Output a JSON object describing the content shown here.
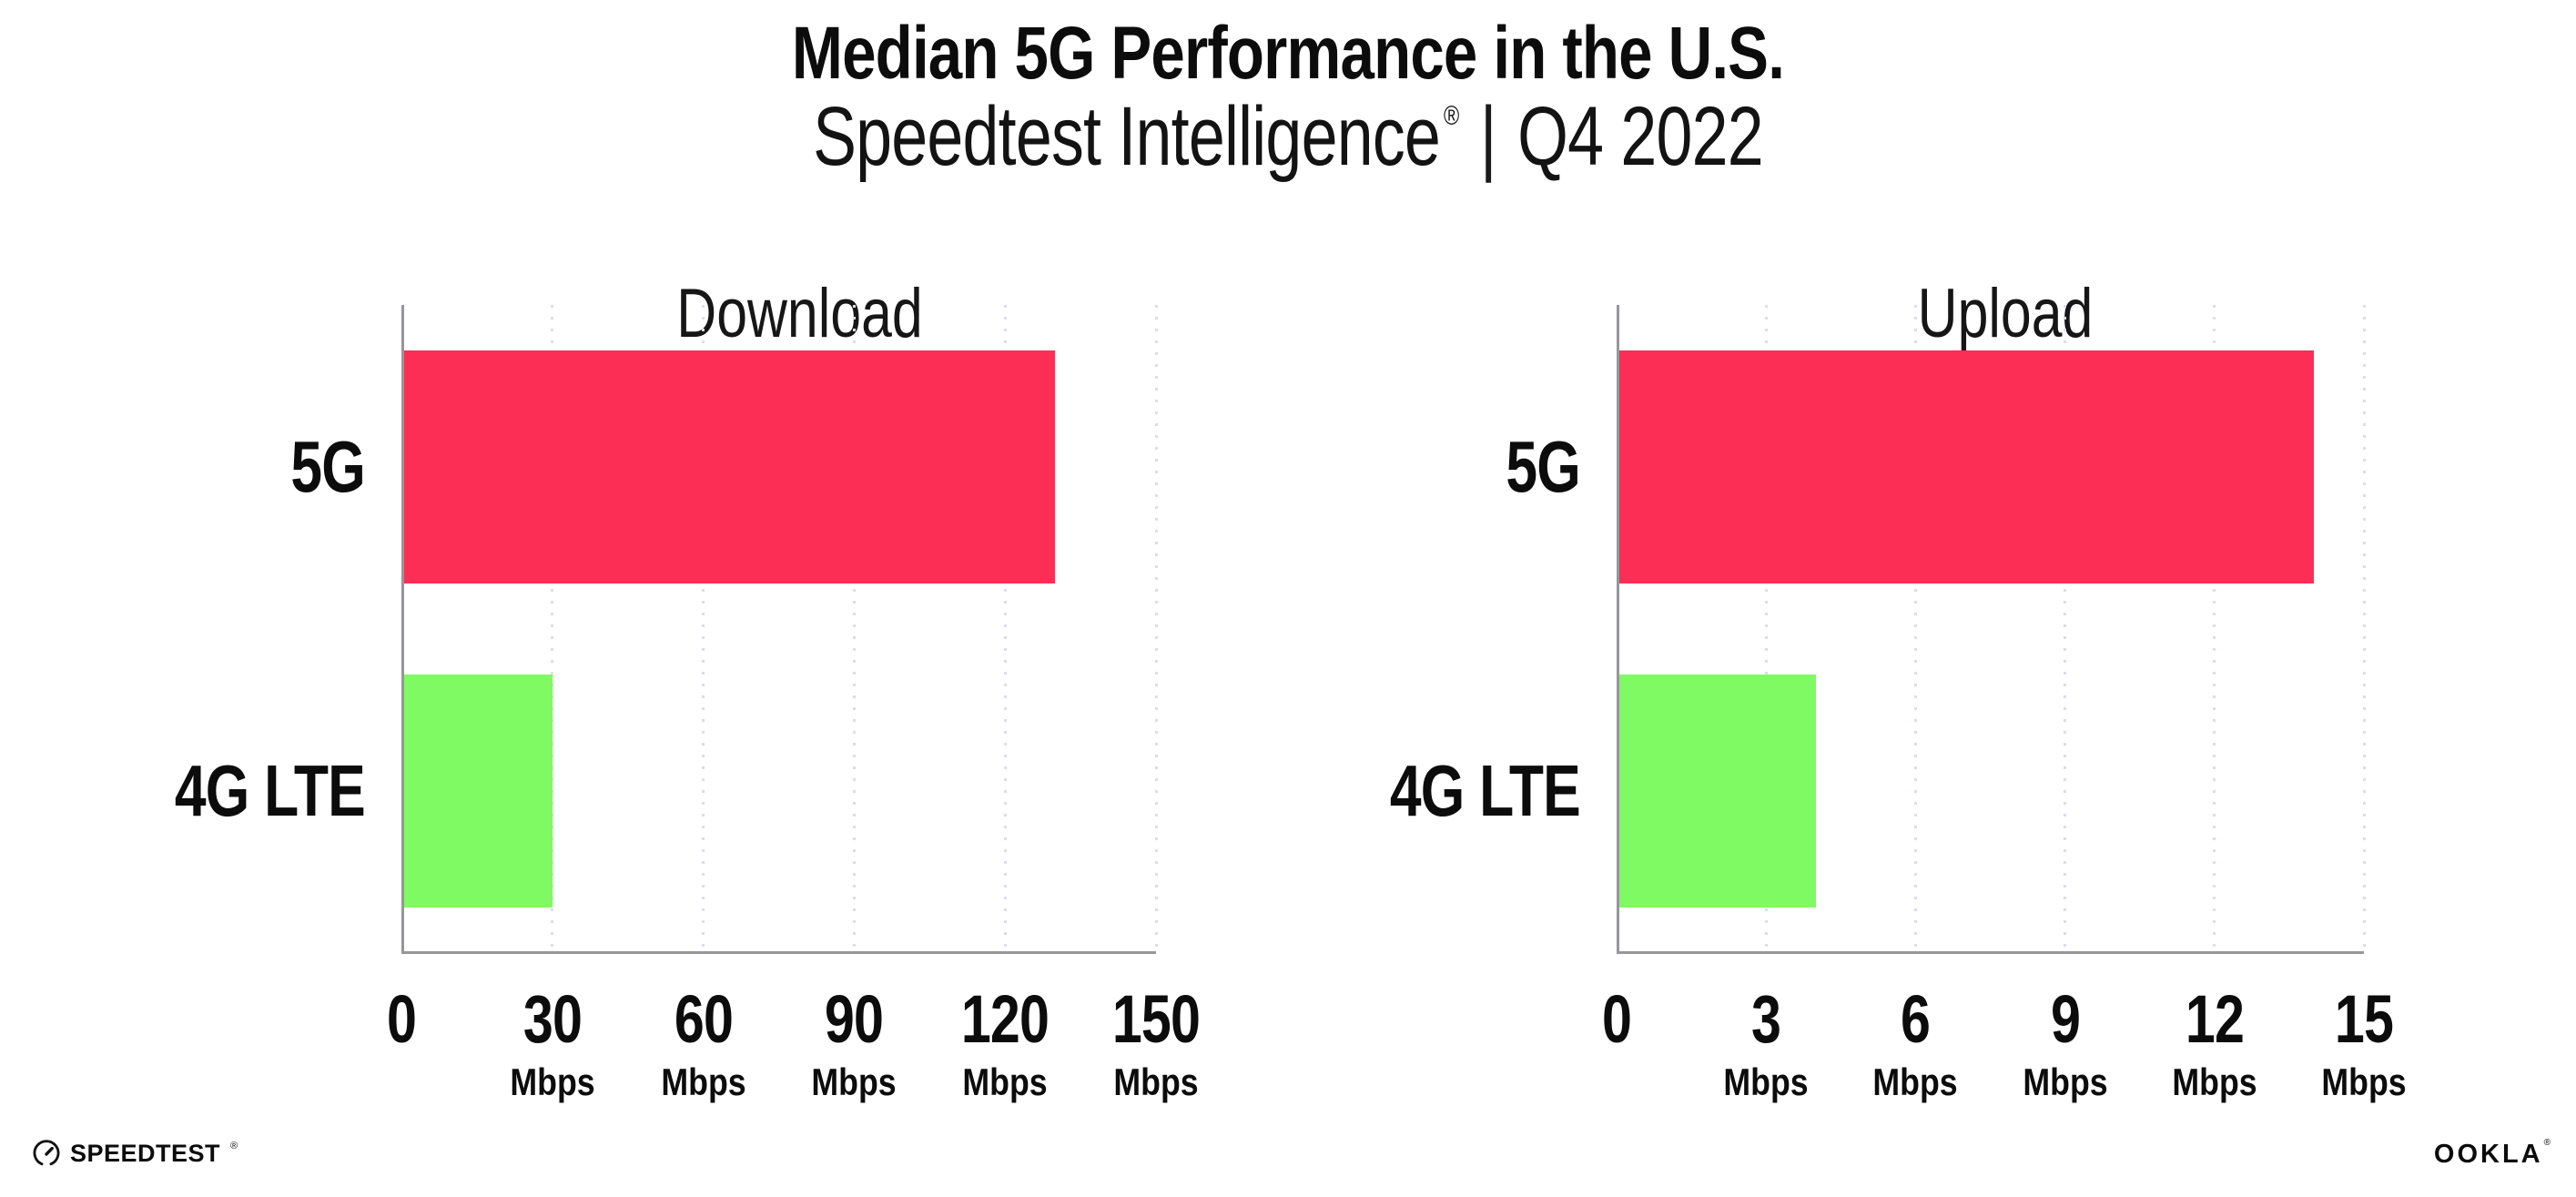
{
  "header": {
    "title": "Median 5G Performance in the U.S.",
    "subtitle_brand": "Speedtest Intelligence",
    "subtitle_reg": "®",
    "subtitle_separator": "|",
    "subtitle_period": "Q4 2022"
  },
  "colors": {
    "bar_5g": "#fd2e55",
    "bar_4g_lte": "#80fa62",
    "gridline": "#dcdde9",
    "axis": "#96969b",
    "text": "#0c0c0c"
  },
  "chart_data": [
    {
      "type": "bar",
      "orientation": "horizontal",
      "title": "Download",
      "categories": [
        "5G",
        "4G LTE"
      ],
      "values": [
        130,
        30
      ],
      "unit": "Mbps",
      "xlabel": "",
      "ylabel": "",
      "xlim": [
        0,
        150
      ],
      "xticks": [
        0,
        30,
        60,
        90,
        120,
        150
      ],
      "grid": "vertical-dotted",
      "legend": "none",
      "bar_colors": [
        "#fd2e55",
        "#80fa62"
      ]
    },
    {
      "type": "bar",
      "orientation": "horizontal",
      "title": "Upload",
      "categories": [
        "5G",
        "4G LTE"
      ],
      "values": [
        14,
        4
      ],
      "unit": "Mbps",
      "xlabel": "",
      "ylabel": "",
      "xlim": [
        0,
        15
      ],
      "xticks": [
        0,
        3,
        6,
        9,
        12,
        15
      ],
      "grid": "vertical-dotted",
      "legend": "none",
      "bar_colors": [
        "#fd2e55",
        "#80fa62"
      ]
    }
  ],
  "footer": {
    "speedtest_logo_text": "SPEEDTEST",
    "speedtest_reg": "®",
    "ookla_logo_text": "OOKLA",
    "ookla_reg": "®"
  }
}
